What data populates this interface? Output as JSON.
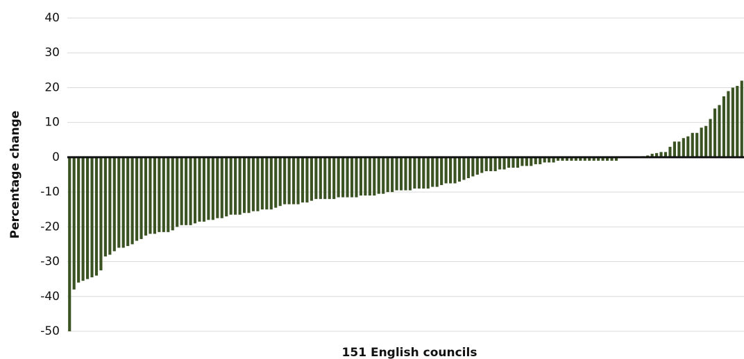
{
  "chart_data": {
    "type": "bar",
    "x_label": "151 English councils",
    "y_label": "Percentage change",
    "categories": [
      null,
      null,
      null,
      null,
      null,
      null,
      null,
      null,
      null,
      null,
      null,
      null,
      null,
      null,
      null,
      null,
      null,
      null,
      null,
      null,
      null,
      null,
      null,
      null,
      null,
      null,
      null,
      null,
      null,
      null,
      null,
      null,
      null,
      null,
      null,
      null,
      null,
      null,
      null,
      null,
      null,
      null,
      null,
      null,
      null,
      null,
      null,
      null,
      null,
      null,
      null,
      null,
      null,
      null,
      null,
      null,
      null,
      null,
      null,
      null,
      null,
      null,
      null,
      null,
      null,
      null,
      null,
      null,
      null,
      null,
      null,
      null,
      null,
      null,
      null,
      null,
      null,
      null,
      null,
      null,
      null,
      null,
      null,
      null,
      null,
      null,
      null,
      null,
      null,
      null,
      null,
      null,
      null,
      null,
      null,
      null,
      null,
      null,
      null,
      null,
      null,
      null,
      null,
      null,
      null,
      null,
      null,
      null,
      null,
      null,
      null,
      null,
      null,
      null,
      null,
      null,
      null,
      null,
      null,
      null,
      null,
      null,
      null,
      null,
      null,
      null,
      null,
      null,
      null,
      null,
      null,
      null,
      null,
      null,
      null,
      null,
      null,
      null,
      null,
      null,
      null,
      null,
      null,
      null,
      null,
      null,
      null,
      null,
      null,
      null,
      null
    ],
    "values": [
      -50,
      -38,
      -36,
      -35.5,
      -35,
      -34.5,
      -34,
      -32.5,
      -28.5,
      -28,
      -27,
      -26,
      -26,
      -25.5,
      -25,
      -24,
      -23.5,
      -22.5,
      -22,
      -22,
      -21.5,
      -21.5,
      -21.5,
      -21,
      -20,
      -19.5,
      -19.5,
      -19.5,
      -19,
      -18.5,
      -18.5,
      -18,
      -18,
      -17.5,
      -17.5,
      -17,
      -16.5,
      -16.5,
      -16.5,
      -16,
      -16,
      -15.5,
      -15.5,
      -15,
      -15,
      -15,
      -14.5,
      -14,
      -13.5,
      -13.5,
      -13.5,
      -13.5,
      -13,
      -13,
      -12.5,
      -12,
      -12,
      -12,
      -12,
      -12,
      -11.5,
      -11.5,
      -11.5,
      -11.5,
      -11.5,
      -11,
      -11,
      -11,
      -11,
      -10.5,
      -10.5,
      -10,
      -10,
      -9.5,
      -9.5,
      -9.5,
      -9.5,
      -9,
      -9,
      -9,
      -9,
      -8.5,
      -8.5,
      -8,
      -7.5,
      -7.5,
      -7.5,
      -7,
      -6.5,
      -6,
      -5.5,
      -5,
      -4.5,
      -4,
      -4,
      -4,
      -3.5,
      -3.5,
      -3,
      -3,
      -3,
      -2.5,
      -2.5,
      -2.5,
      -2,
      -2,
      -1.5,
      -1.5,
      -1.5,
      -1,
      -1,
      -1,
      -1,
      -1,
      -1,
      -1,
      -1,
      -1,
      -1,
      -1,
      -1,
      -1,
      -1,
      0,
      0,
      0,
      0,
      0,
      0.3,
      0.5,
      1,
      1.2,
      1.5,
      1.5,
      3,
      4.5,
      4.5,
      5.5,
      6,
      7,
      7,
      8.5,
      9,
      11,
      14,
      15,
      17.5,
      19,
      20,
      20.5,
      22
    ],
    "color": "#3b5323",
    "ylim": [
      -50,
      40
    ],
    "yticks": [
      -50,
      -40,
      -30,
      -20,
      -10,
      0,
      10,
      20,
      30,
      40
    ],
    "grid": true
  }
}
